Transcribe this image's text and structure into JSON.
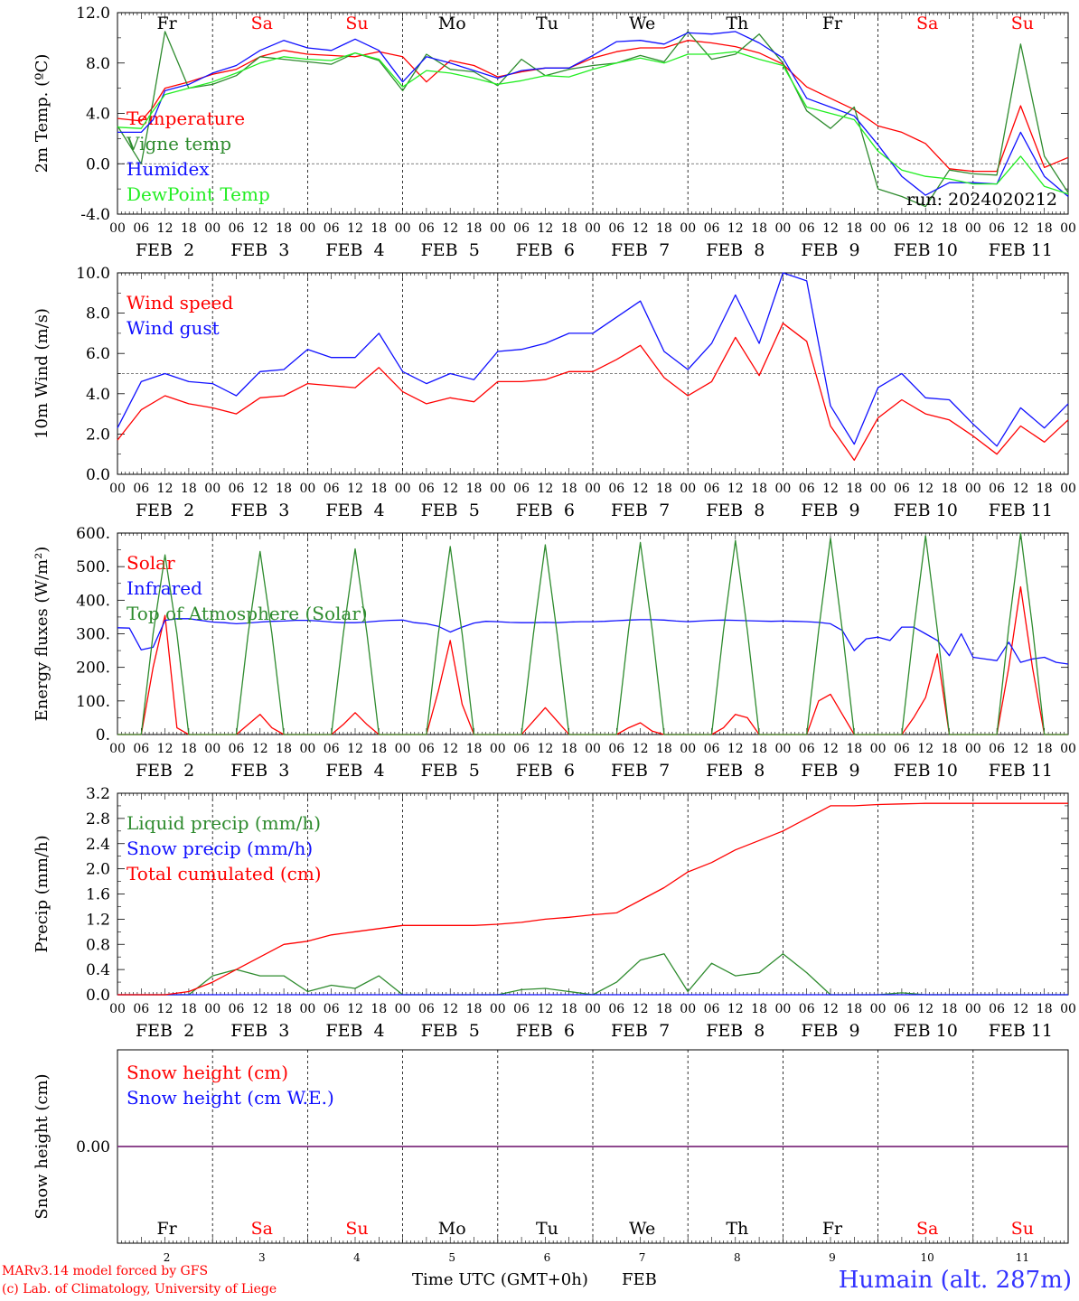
{
  "colors": {
    "red": "#ff0000",
    "green": "#2e8b2e",
    "blue": "#1010ff",
    "lightgreen": "#22ee22",
    "snow_line": "#7f2f7f",
    "weekend": "#ff0000",
    "weekday": "#000000"
  },
  "days": [
    {
      "abbr": "Fr",
      "date": "FEB  2",
      "num": "2",
      "weekend": false
    },
    {
      "abbr": "Sa",
      "date": "FEB  3",
      "num": "3",
      "weekend": true
    },
    {
      "abbr": "Su",
      "date": "FEB  4",
      "num": "4",
      "weekend": true
    },
    {
      "abbr": "Mo",
      "date": "FEB  5",
      "num": "5",
      "weekend": false
    },
    {
      "abbr": "Tu",
      "date": "FEB  6",
      "num": "6",
      "weekend": false
    },
    {
      "abbr": "We",
      "date": "FEB  7",
      "num": "7",
      "weekend": false
    },
    {
      "abbr": "Th",
      "date": "FEB  8",
      "num": "8",
      "weekend": false
    },
    {
      "abbr": "Fr",
      "date": "FEB  9",
      "num": "9",
      "weekend": false
    },
    {
      "abbr": "Sa",
      "date": "FEB 10",
      "num": "10",
      "weekend": true
    },
    {
      "abbr": "Su",
      "date": "FEB 11",
      "num": "11",
      "weekend": true
    }
  ],
  "hour_labels": [
    "00",
    "06",
    "12",
    "18"
  ],
  "final_hour_label": "00",
  "footer": {
    "line1": "MARv3.14 model forced by GFS",
    "line2": "(c) Lab. of Climatology, University of Liege",
    "xlabel": "Time UTC (GMT+0h)",
    "month": "FEB",
    "station": "Humain (alt. 287m)"
  },
  "chart_data": [
    {
      "type": "line",
      "id": "temp",
      "ylabel": "2m Temp. (ºC)",
      "ylim": [
        -4.0,
        12.0
      ],
      "yticks": [
        "-4.0",
        "0.0",
        "4.0",
        "8.0",
        "12.0"
      ],
      "ytick_values": [
        -4,
        0,
        4,
        8,
        12
      ],
      "dashed_y": [
        0
      ],
      "annotation": "run: 2024020212",
      "x_hours_since_feb2_00": [
        0,
        6,
        9,
        12,
        18,
        24,
        30,
        36,
        42,
        48,
        54,
        60,
        66,
        72,
        78,
        84,
        90,
        96,
        102,
        108,
        114,
        120,
        126,
        132,
        138,
        144,
        150,
        156,
        162,
        168,
        174,
        180,
        186,
        192,
        198,
        204,
        210,
        216,
        222,
        228,
        234,
        240
      ],
      "series": [
        {
          "name": "Temperature",
          "color": "red",
          "values": [
            3.6,
            3.4,
            4.5,
            6.0,
            6.5,
            7.1,
            7.5,
            8.5,
            9.0,
            8.7,
            8.6,
            8.5,
            8.9,
            8.5,
            6.5,
            8.2,
            7.8,
            6.9,
            7.3,
            7.6,
            7.6,
            8.4,
            8.9,
            9.2,
            9.2,
            9.8,
            9.6,
            9.3,
            8.8,
            7.9,
            6.1,
            5.2,
            4.3,
            3.0,
            2.5,
            1.6,
            -0.4,
            -0.6,
            -0.6,
            4.6,
            -0.3,
            0.5
          ]
        },
        {
          "name": "Vigne temp",
          "color": "green",
          "values": [
            3.0,
            0.0,
            5.0,
            10.5,
            6.0,
            6.3,
            7.0,
            8.5,
            8.3,
            8.1,
            7.9,
            8.8,
            8.2,
            5.8,
            8.7,
            7.5,
            7.3,
            6.2,
            8.3,
            7.0,
            7.5,
            7.8,
            8.0,
            8.6,
            8.1,
            10.5,
            8.3,
            8.7,
            10.3,
            8.0,
            4.2,
            2.8,
            4.5,
            -2.0,
            -2.6,
            -3.4,
            -0.5,
            -0.8,
            -0.9,
            9.5,
            0.6,
            -2.3
          ]
        },
        {
          "name": "Humidex",
          "color": "blue",
          "values": [
            2.5,
            2.5,
            3.5,
            5.8,
            6.3,
            7.2,
            7.8,
            9.0,
            9.8,
            9.2,
            9.0,
            9.9,
            9.0,
            6.5,
            8.5,
            8.0,
            7.4,
            6.8,
            7.4,
            7.6,
            7.6,
            8.6,
            9.7,
            9.8,
            9.5,
            10.4,
            10.3,
            10.5,
            9.6,
            8.4,
            5.2,
            4.5,
            3.8,
            1.5,
            -1.0,
            -2.5,
            -1.5,
            -1.5,
            -1.6,
            2.5,
            -1.0,
            -2.6
          ]
        },
        {
          "name": "DewPoint Temp",
          "color": "lightgreen",
          "values": [
            2.9,
            2.8,
            4.2,
            5.5,
            6.0,
            6.5,
            7.2,
            8.0,
            8.5,
            8.3,
            8.2,
            8.8,
            8.3,
            6.1,
            7.4,
            7.2,
            6.8,
            6.3,
            6.6,
            7.0,
            6.9,
            7.5,
            8.0,
            8.4,
            8.0,
            8.7,
            8.7,
            8.9,
            8.3,
            7.8,
            4.5,
            4.0,
            3.5,
            1.0,
            -0.5,
            -1.0,
            -1.2,
            -1.6,
            -1.6,
            0.6,
            -1.8,
            -2.4
          ]
        }
      ]
    },
    {
      "type": "line",
      "id": "wind",
      "ylabel": "10m Wind (m/s)",
      "ylim": [
        0.0,
        10.0
      ],
      "yticks": [
        "0.0",
        "2.0",
        "4.0",
        "6.0",
        "8.0",
        "10.0"
      ],
      "ytick_values": [
        0,
        2,
        4,
        6,
        8,
        10
      ],
      "dashed_y": [
        5
      ],
      "x_hours_since_feb2_00": [
        0,
        6,
        12,
        18,
        24,
        30,
        36,
        42,
        48,
        54,
        60,
        66,
        72,
        78,
        84,
        90,
        96,
        102,
        108,
        114,
        120,
        126,
        132,
        138,
        144,
        150,
        156,
        162,
        168,
        174,
        180,
        186,
        192,
        198,
        204,
        210,
        216,
        222,
        228,
        234,
        240
      ],
      "series": [
        {
          "name": "Wind speed",
          "color": "red",
          "values": [
            1.7,
            3.2,
            3.9,
            3.5,
            3.3,
            3.0,
            3.8,
            3.9,
            4.5,
            4.4,
            4.3,
            5.3,
            4.1,
            3.5,
            3.8,
            3.6,
            4.6,
            4.6,
            4.7,
            5.1,
            5.1,
            5.7,
            6.4,
            4.8,
            3.9,
            4.6,
            6.8,
            4.9,
            7.5,
            6.6,
            2.4,
            0.7,
            2.8,
            3.7,
            3.0,
            2.7,
            1.9,
            1.0,
            2.4,
            1.6,
            2.7
          ]
        },
        {
          "name": "Wind gust",
          "color": "blue",
          "values": [
            2.3,
            4.6,
            5.0,
            4.6,
            4.5,
            3.9,
            5.1,
            5.2,
            6.2,
            5.8,
            5.8,
            7.0,
            5.1,
            4.5,
            5.0,
            4.7,
            6.1,
            6.2,
            6.5,
            7.0,
            7.0,
            7.8,
            8.6,
            6.1,
            5.2,
            6.5,
            8.9,
            6.5,
            10.0,
            9.6,
            3.4,
            1.5,
            4.3,
            5.0,
            3.8,
            3.7,
            2.5,
            1.4,
            3.3,
            2.3,
            3.5
          ]
        }
      ]
    },
    {
      "type": "line",
      "id": "energy",
      "ylabel": "Energy fluxes (W/m²)",
      "ylim": [
        0,
        600
      ],
      "yticks": [
        "0.",
        "100.",
        "200.",
        "300.",
        "400.",
        "500.",
        "600."
      ],
      "ytick_values": [
        0,
        100,
        200,
        300,
        400,
        500,
        600
      ],
      "dashed_y": [],
      "x_hours_since_feb2_00": [
        0,
        3,
        6,
        9,
        12,
        15,
        18,
        21,
        24,
        27,
        30,
        33,
        36,
        39,
        42,
        45,
        48,
        51,
        54,
        57,
        60,
        63,
        66,
        69,
        72,
        75,
        78,
        81,
        84,
        87,
        90,
        93,
        96,
        99,
        102,
        105,
        108,
        111,
        114,
        117,
        120,
        123,
        126,
        129,
        132,
        135,
        138,
        141,
        144,
        147,
        150,
        153,
        156,
        159,
        162,
        165,
        168,
        171,
        174,
        177,
        180,
        183,
        186,
        189,
        192,
        195,
        198,
        201,
        204,
        207,
        210,
        213,
        216,
        219,
        222,
        225,
        228,
        231,
        234,
        237,
        240
      ],
      "series": [
        {
          "name": "Solar",
          "color": "red",
          "values": [
            0,
            0,
            0,
            200,
            355,
            20,
            0,
            0,
            0,
            0,
            0,
            30,
            60,
            20,
            0,
            0,
            0,
            0,
            0,
            30,
            65,
            30,
            0,
            0,
            0,
            0,
            0,
            130,
            280,
            90,
            0,
            0,
            0,
            0,
            0,
            40,
            80,
            40,
            0,
            0,
            0,
            0,
            0,
            20,
            35,
            10,
            0,
            0,
            0,
            0,
            0,
            20,
            60,
            50,
            0,
            0,
            0,
            0,
            0,
            100,
            120,
            60,
            0,
            0,
            0,
            0,
            0,
            50,
            110,
            240,
            0,
            0,
            0,
            0,
            0,
            200,
            440,
            200,
            0,
            0,
            0
          ]
        },
        {
          "name": "Infrared",
          "color": "blue",
          "values": [
            318,
            317,
            252,
            260,
            340,
            345,
            345,
            340,
            335,
            333,
            330,
            332,
            335,
            337,
            338,
            340,
            340,
            338,
            335,
            333,
            333,
            335,
            338,
            340,
            341,
            333,
            330,
            322,
            305,
            320,
            332,
            337,
            336,
            334,
            333,
            333,
            334,
            333,
            335,
            336,
            336,
            337,
            339,
            341,
            342,
            342,
            341,
            338,
            336,
            338,
            340,
            341,
            340,
            339,
            338,
            337,
            338,
            337,
            336,
            334,
            330,
            310,
            250,
            285,
            290,
            280,
            320,
            320,
            300,
            280,
            235,
            300,
            230,
            225,
            220,
            275,
            215,
            225,
            230,
            215,
            210
          ]
        },
        {
          "name": "Top of Atmosphere (Solar)",
          "color": "green",
          "values": [
            0,
            0,
            0,
            300,
            535,
            300,
            0,
            0,
            0,
            0,
            0,
            300,
            545,
            300,
            0,
            0,
            0,
            0,
            0,
            300,
            553,
            300,
            0,
            0,
            0,
            0,
            0,
            300,
            560,
            300,
            0,
            0,
            0,
            0,
            0,
            300,
            565,
            300,
            0,
            0,
            0,
            0,
            0,
            310,
            572,
            310,
            0,
            0,
            0,
            0,
            0,
            310,
            578,
            310,
            0,
            0,
            0,
            0,
            0,
            310,
            585,
            310,
            0,
            0,
            0,
            0,
            0,
            310,
            592,
            310,
            0,
            0,
            0,
            0,
            0,
            320,
            600,
            320,
            0,
            0,
            0
          ]
        }
      ]
    },
    {
      "type": "line",
      "id": "precip",
      "ylabel": "Precip (mm/h)",
      "ylim": [
        0.0,
        3.2
      ],
      "yticks": [
        "0.0",
        "0.4",
        "0.8",
        "1.2",
        "1.6",
        "2.0",
        "2.4",
        "2.8",
        "3.2"
      ],
      "ytick_values": [
        0,
        0.4,
        0.8,
        1.2,
        1.6,
        2.0,
        2.4,
        2.8,
        3.2
      ],
      "dashed_y": [],
      "x_hours_since_feb2_00": [
        0,
        6,
        12,
        18,
        24,
        30,
        36,
        42,
        48,
        54,
        60,
        66,
        72,
        78,
        84,
        90,
        96,
        102,
        108,
        114,
        120,
        126,
        132,
        138,
        144,
        150,
        156,
        162,
        168,
        174,
        180,
        186,
        192,
        198,
        204,
        210,
        216,
        222,
        228,
        234,
        240
      ],
      "series": [
        {
          "name": "Liquid precip (mm/h)",
          "color": "green",
          "values": [
            0.0,
            0.0,
            0.0,
            0.0,
            0.3,
            0.4,
            0.3,
            0.3,
            0.05,
            0.15,
            0.1,
            0.3,
            0.0,
            0.0,
            0.0,
            0.0,
            0.0,
            0.08,
            0.1,
            0.05,
            0.0,
            0.2,
            0.55,
            0.65,
            0.05,
            0.5,
            0.3,
            0.35,
            0.65,
            0.35,
            0.0,
            0.0,
            0.0,
            0.03,
            0.0,
            0.0,
            0.0,
            0.0,
            0.0,
            0.0,
            0.0
          ]
        },
        {
          "name": "Snow precip (mm/h)",
          "color": "blue",
          "values": [
            0,
            0,
            0,
            0,
            0,
            0,
            0,
            0,
            0,
            0,
            0,
            0,
            0,
            0,
            0,
            0,
            0,
            0,
            0,
            0,
            0,
            0,
            0,
            0,
            0,
            0,
            0,
            0,
            0,
            0,
            0,
            0,
            0,
            0,
            0,
            0,
            0,
            0,
            0,
            0,
            0
          ]
        },
        {
          "name": "Total cumulated (cm)",
          "color": "red",
          "values": [
            0.0,
            0.0,
            0.0,
            0.05,
            0.2,
            0.4,
            0.6,
            0.8,
            0.85,
            0.95,
            1.0,
            1.05,
            1.1,
            1.1,
            1.1,
            1.1,
            1.12,
            1.15,
            1.2,
            1.23,
            1.27,
            1.3,
            1.5,
            1.7,
            1.95,
            2.1,
            2.3,
            2.45,
            2.6,
            2.8,
            3.0,
            3.0,
            3.02,
            3.03,
            3.04,
            3.04,
            3.04,
            3.04,
            3.04,
            3.04,
            3.04
          ]
        }
      ]
    },
    {
      "type": "line",
      "id": "snow",
      "ylabel": "Snow height (cm)",
      "ylim": [
        -1,
        1
      ],
      "yticks": [
        "0.00"
      ],
      "ytick_values": [
        0
      ],
      "dashed_y": [],
      "x_hours_since_feb2_00": [
        0,
        240
      ],
      "series": [
        {
          "name": "Snow height (cm)",
          "color": "red",
          "values": [
            0,
            0
          ]
        },
        {
          "name": "Snow height (cm W.E.)",
          "color": "blue",
          "values": [
            0,
            0
          ]
        }
      ]
    }
  ]
}
